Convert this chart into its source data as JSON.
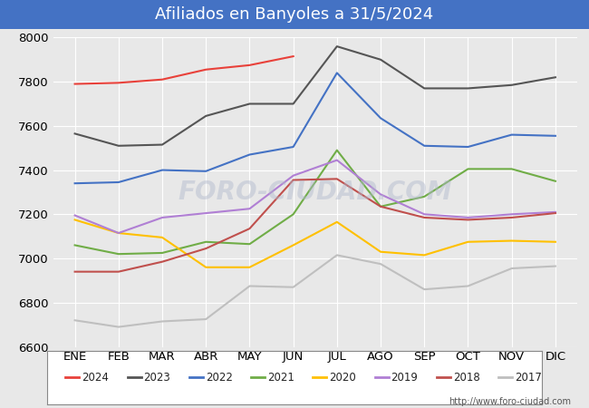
{
  "title": "Afiliados en Banyoles a 31/5/2024",
  "title_color": "#ffffff",
  "title_bg_color": "#4472c4",
  "xlabel": "",
  "ylabel": "",
  "ylim": [
    6600,
    8000
  ],
  "yticks": [
    6600,
    6800,
    7000,
    7200,
    7400,
    7600,
    7800,
    8000
  ],
  "months": [
    "ENE",
    "FEB",
    "MAR",
    "ABR",
    "MAY",
    "JUN",
    "JUL",
    "AGO",
    "SEP",
    "OCT",
    "NOV",
    "DIC"
  ],
  "watermark": "FORO-CIUDAD.COM",
  "url": "http://www.foro-ciudad.com",
  "series": {
    "2024": {
      "color": "#e8413a",
      "values": [
        7790,
        7795,
        7810,
        7855,
        7875,
        7915,
        null,
        null,
        null,
        null,
        null,
        null
      ]
    },
    "2023": {
      "color": "#555555",
      "values": [
        7565,
        7510,
        7515,
        7645,
        7700,
        7700,
        7960,
        7900,
        7770,
        7770,
        7785,
        7820
      ]
    },
    "2022": {
      "color": "#4472c4",
      "values": [
        7340,
        7345,
        7400,
        7395,
        7470,
        7505,
        7840,
        7635,
        7510,
        7505,
        7560,
        7555
      ]
    },
    "2021": {
      "color": "#70ad47",
      "values": [
        7060,
        7020,
        7025,
        7075,
        7065,
        7200,
        7490,
        7235,
        7280,
        7405,
        7405,
        7350
      ]
    },
    "2020": {
      "color": "#ffc000",
      "values": [
        7175,
        7115,
        7095,
        6960,
        6960,
        7060,
        7165,
        7030,
        7015,
        7075,
        7080,
        7075
      ]
    },
    "2019": {
      "color": "#b07fd4",
      "values": [
        7195,
        7115,
        7185,
        7205,
        7225,
        7375,
        7445,
        7290,
        7200,
        7185,
        7200,
        7210
      ]
    },
    "2018": {
      "color": "#c0504d",
      "values": [
        6940,
        6940,
        6985,
        7045,
        7135,
        7355,
        7360,
        7235,
        7185,
        7175,
        7185,
        7205
      ]
    },
    "2017": {
      "color": "#bfbfbf",
      "values": [
        6720,
        6690,
        6715,
        6725,
        6875,
        6870,
        7015,
        6975,
        6860,
        6875,
        6955,
        6965
      ]
    }
  },
  "legend_order": [
    "2024",
    "2023",
    "2022",
    "2021",
    "2020",
    "2019",
    "2018",
    "2017"
  ],
  "fig_bg_color": "#e8e8e8",
  "plot_bg_color": "#e8e8e8",
  "grid_color": "#ffffff",
  "font_size": 9.5
}
